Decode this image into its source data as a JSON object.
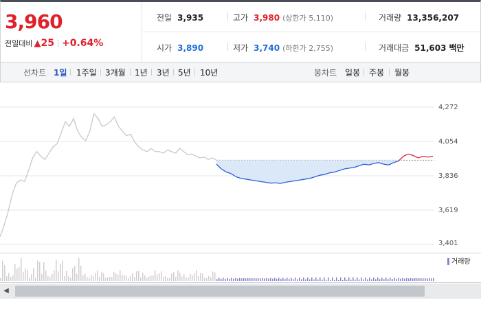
{
  "quote": {
    "price": "3,960",
    "change_label": "전일대비",
    "change_arrow": "▲",
    "change_value": "25",
    "change_pct": "+0.64%"
  },
  "stats": {
    "prev_close": {
      "label": "전일",
      "value": "3,935"
    },
    "high": {
      "label": "고가",
      "value": "3,980",
      "sub": "(상한가 5,110)"
    },
    "volume": {
      "label": "거래량",
      "value": "13,356,207"
    },
    "open": {
      "label": "시가",
      "value": "3,890"
    },
    "low": {
      "label": "저가",
      "value": "3,740",
      "sub": "(하한가 2,755)"
    },
    "turnover": {
      "label": "거래대금",
      "value": "51,603",
      "unit": "백만"
    }
  },
  "line_tabs": {
    "label": "선차트",
    "items": [
      "1일",
      "1주일",
      "3개월",
      "1년",
      "3년",
      "5년",
      "10년"
    ],
    "active": "1일"
  },
  "candle_tabs": {
    "label": "봉차트",
    "items": [
      "일봉",
      "주봉",
      "월봉"
    ]
  },
  "chart_data": {
    "type": "line",
    "y_ticks": [
      "4,272",
      "4,054",
      "3,836",
      "3,619",
      "3,401"
    ],
    "ylim": [
      3401,
      4272
    ],
    "reference_line": 3935,
    "colors": {
      "prev_day": "#c8c8c8",
      "up": "#e0202b",
      "down": "#2a5bd7",
      "fill": "#dbe8f8",
      "volume": "#8a80c9"
    },
    "prev_day": [
      3450,
      3520,
      3610,
      3720,
      3790,
      3810,
      3800,
      3870,
      3950,
      3990,
      3960,
      3940,
      3980,
      4020,
      4040,
      4110,
      4180,
      4150,
      4200,
      4120,
      4080,
      4060,
      4120,
      4230,
      4200,
      4150,
      4160,
      4180,
      4210,
      4150,
      4120,
      4090,
      4100,
      4050,
      4020,
      4000,
      3990,
      4010,
      3990,
      3990,
      3980,
      4000,
      3990,
      3980,
      4010,
      3990,
      3970,
      3975,
      3960,
      3950,
      3955,
      3940,
      3950,
      3935
    ],
    "today": [
      3910,
      3880,
      3860,
      3850,
      3830,
      3820,
      3815,
      3810,
      3805,
      3800,
      3795,
      3790,
      3792,
      3788,
      3795,
      3800,
      3805,
      3810,
      3815,
      3820,
      3830,
      3840,
      3845,
      3855,
      3860,
      3870,
      3880,
      3885,
      3890,
      3900,
      3910,
      3905,
      3915,
      3920,
      3910,
      3905,
      3920,
      3930,
      3960,
      3975,
      3965,
      3950,
      3960,
      3955,
      3960
    ],
    "volume_legend": "거래량"
  }
}
